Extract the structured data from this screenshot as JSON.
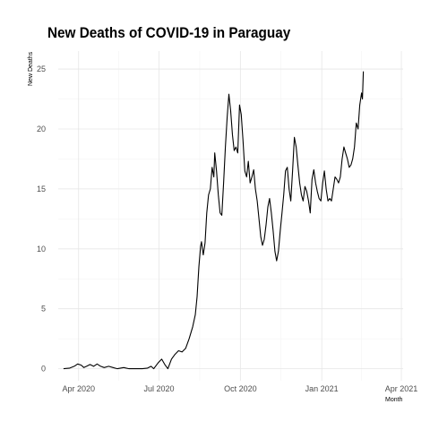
{
  "chart_data": {
    "type": "line",
    "title": "New Deaths of COVID-19 in Paraguay",
    "xlabel": "Month",
    "ylabel": "New Deaths",
    "x_ticks": [
      "Apr 2020",
      "Jul 2020",
      "Oct 2020",
      "Jan 2021",
      "Apr 2021"
    ],
    "y_ticks": [
      "0",
      "5",
      "10",
      "15",
      "20",
      "25"
    ],
    "ylim": [
      -1,
      26.5
    ],
    "xlim": [
      "2020-03-09",
      "2021-04-03"
    ],
    "grid": true,
    "line_color": "#000000",
    "series": [
      {
        "points": [
          [
            "2020-03-15",
            0.0
          ],
          [
            "2020-03-22",
            0.05
          ],
          [
            "2020-03-27",
            0.2
          ],
          [
            "2020-03-31",
            0.4
          ],
          [
            "2020-04-04",
            0.3
          ],
          [
            "2020-04-07",
            0.1
          ],
          [
            "2020-04-10",
            0.2
          ],
          [
            "2020-04-14",
            0.35
          ],
          [
            "2020-04-18",
            0.2
          ],
          [
            "2020-04-22",
            0.4
          ],
          [
            "2020-04-26",
            0.2
          ],
          [
            "2020-04-30",
            0.1
          ],
          [
            "2020-05-05",
            0.2
          ],
          [
            "2020-05-10",
            0.1
          ],
          [
            "2020-05-15",
            0.0
          ],
          [
            "2020-05-22",
            0.1
          ],
          [
            "2020-05-28",
            0.0
          ],
          [
            "2020-06-05",
            0.0
          ],
          [
            "2020-06-12",
            0.0
          ],
          [
            "2020-06-18",
            0.05
          ],
          [
            "2020-06-22",
            0.2
          ],
          [
            "2020-06-25",
            0.0
          ],
          [
            "2020-06-30",
            0.5
          ],
          [
            "2020-07-04",
            0.8
          ],
          [
            "2020-07-08",
            0.3
          ],
          [
            "2020-07-11",
            0.0
          ],
          [
            "2020-07-15",
            0.8
          ],
          [
            "2020-07-19",
            1.2
          ],
          [
            "2020-07-23",
            1.5
          ],
          [
            "2020-07-27",
            1.4
          ],
          [
            "2020-07-31",
            1.7
          ],
          [
            "2020-08-04",
            2.5
          ],
          [
            "2020-08-08",
            3.5
          ],
          [
            "2020-08-11",
            4.5
          ],
          [
            "2020-08-13",
            6.0
          ],
          [
            "2020-08-15",
            8.5
          ],
          [
            "2020-08-17",
            10.2
          ],
          [
            "2020-08-18",
            10.6
          ],
          [
            "2020-08-20",
            9.5
          ],
          [
            "2020-08-22",
            10.5
          ],
          [
            "2020-08-24",
            13.0
          ],
          [
            "2020-08-26",
            14.5
          ],
          [
            "2020-08-28",
            15.0
          ],
          [
            "2020-08-30",
            16.8
          ],
          [
            "2020-09-01",
            16.0
          ],
          [
            "2020-09-02",
            18.0
          ],
          [
            "2020-09-04",
            16.5
          ],
          [
            "2020-09-06",
            14.5
          ],
          [
            "2020-09-08",
            13.0
          ],
          [
            "2020-09-10",
            12.8
          ],
          [
            "2020-09-12",
            15.5
          ],
          [
            "2020-09-14",
            18.5
          ],
          [
            "2020-09-16",
            21.0
          ],
          [
            "2020-09-18",
            22.9
          ],
          [
            "2020-09-20",
            21.5
          ],
          [
            "2020-09-22",
            19.5
          ],
          [
            "2020-09-24",
            18.2
          ],
          [
            "2020-09-26",
            18.5
          ],
          [
            "2020-09-28",
            18.0
          ],
          [
            "2020-09-30",
            22.0
          ],
          [
            "2020-10-02",
            21.2
          ],
          [
            "2020-10-04",
            19.0
          ],
          [
            "2020-10-06",
            16.5
          ],
          [
            "2020-10-08",
            16.0
          ],
          [
            "2020-10-10",
            17.3
          ],
          [
            "2020-10-12",
            15.5
          ],
          [
            "2020-10-14",
            16.0
          ],
          [
            "2020-10-16",
            16.6
          ],
          [
            "2020-10-18",
            15.0
          ],
          [
            "2020-10-20",
            14.0
          ],
          [
            "2020-10-22",
            12.5
          ],
          [
            "2020-10-24",
            11.0
          ],
          [
            "2020-10-26",
            10.3
          ],
          [
            "2020-10-28",
            10.8
          ],
          [
            "2020-10-30",
            12.0
          ],
          [
            "2020-11-01",
            13.5
          ],
          [
            "2020-11-03",
            14.2
          ],
          [
            "2020-11-05",
            13.0
          ],
          [
            "2020-11-07",
            11.5
          ],
          [
            "2020-11-09",
            9.8
          ],
          [
            "2020-11-11",
            9.0
          ],
          [
            "2020-11-13",
            9.8
          ],
          [
            "2020-11-15",
            11.5
          ],
          [
            "2020-11-17",
            13.0
          ],
          [
            "2020-11-19",
            14.5
          ],
          [
            "2020-11-21",
            16.5
          ],
          [
            "2020-11-23",
            16.8
          ],
          [
            "2020-11-25",
            15.0
          ],
          [
            "2020-11-27",
            14.0
          ],
          [
            "2020-11-29",
            16.5
          ],
          [
            "2020-12-01",
            19.3
          ],
          [
            "2020-12-03",
            18.5
          ],
          [
            "2020-12-05",
            17.0
          ],
          [
            "2020-12-07",
            15.5
          ],
          [
            "2020-12-09",
            14.5
          ],
          [
            "2020-12-11",
            14.0
          ],
          [
            "2020-12-13",
            15.2
          ],
          [
            "2020-12-15",
            14.8
          ],
          [
            "2020-12-17",
            14.0
          ],
          [
            "2020-12-19",
            13.0
          ],
          [
            "2020-12-21",
            15.8
          ],
          [
            "2020-12-23",
            16.6
          ],
          [
            "2020-12-25",
            15.5
          ],
          [
            "2020-12-27",
            14.8
          ],
          [
            "2020-12-29",
            14.2
          ],
          [
            "2020-12-31",
            14.0
          ],
          [
            "2021-01-02",
            15.5
          ],
          [
            "2021-01-04",
            16.5
          ],
          [
            "2021-01-06",
            15.0
          ],
          [
            "2021-01-08",
            14.0
          ],
          [
            "2021-01-10",
            14.2
          ],
          [
            "2021-01-12",
            14.0
          ],
          [
            "2021-01-14",
            15.0
          ],
          [
            "2021-01-16",
            16.0
          ],
          [
            "2021-01-18",
            15.8
          ],
          [
            "2021-01-20",
            15.5
          ],
          [
            "2021-01-22",
            16.0
          ],
          [
            "2021-01-24",
            17.5
          ],
          [
            "2021-01-26",
            18.5
          ],
          [
            "2021-01-28",
            18.0
          ],
          [
            "2021-01-30",
            17.5
          ],
          [
            "2021-02-01",
            16.8
          ],
          [
            "2021-02-03",
            17.0
          ],
          [
            "2021-02-05",
            17.5
          ],
          [
            "2021-02-07",
            18.5
          ],
          [
            "2021-02-09",
            20.5
          ],
          [
            "2021-02-11",
            20.0
          ],
          [
            "2021-02-13",
            22.0
          ],
          [
            "2021-02-15",
            23.0
          ],
          [
            "2021-02-16",
            22.5
          ],
          [
            "2021-02-17",
            24.8
          ]
        ]
      }
    ]
  }
}
